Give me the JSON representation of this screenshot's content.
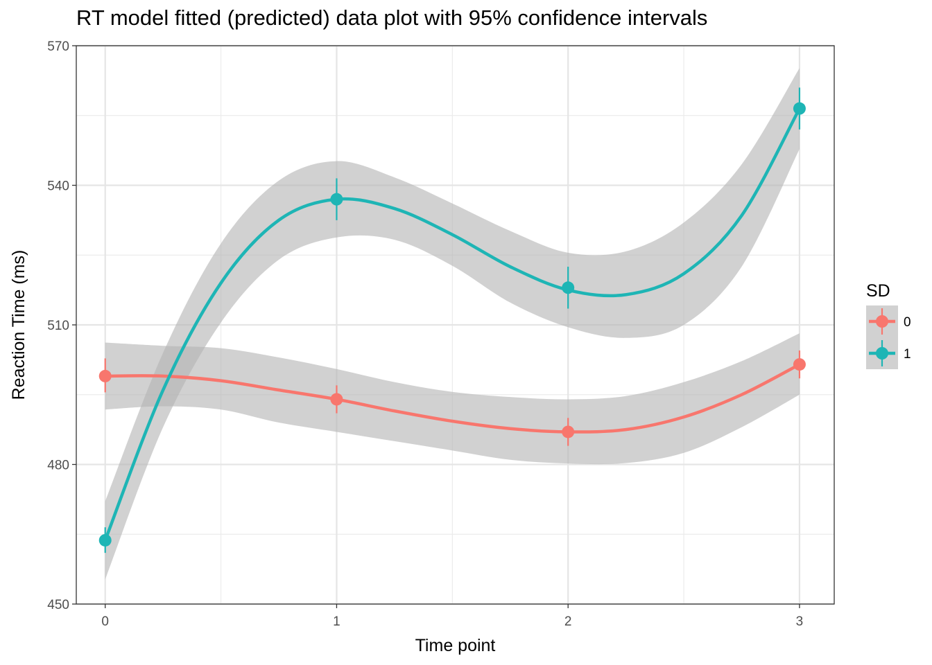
{
  "title": "RT model fitted (predicted) data plot with 95% confidence intervals",
  "colors": {
    "sd0": "#F8766D",
    "sd1": "#1EB5B5",
    "ribbon": "#B3B3B3"
  },
  "chart_data": {
    "type": "line",
    "title": "RT model fitted (predicted) data plot with 95% confidence intervals",
    "xlabel": "Time point",
    "ylabel": "Reaction Time (ms)",
    "x_ticks": [
      0,
      1,
      2,
      3
    ],
    "y_ticks": [
      450,
      480,
      510,
      540,
      570
    ],
    "xlim": [
      -0.125,
      3.15
    ],
    "ylim": [
      450,
      570
    ],
    "grid": true,
    "legend": {
      "title": "SD",
      "position": "right",
      "entries": [
        "0",
        "1"
      ]
    },
    "series": [
      {
        "name": "0",
        "x": [
          0,
          1,
          2,
          3
        ],
        "y": [
          499,
          494,
          487,
          501.5
        ],
        "err_low": [
          495.5,
          491,
          484,
          498.5
        ],
        "err_high": [
          502.8,
          497,
          490,
          504.5
        ],
        "fit_x": [
          0,
          0.25,
          0.5,
          0.75,
          1,
          1.25,
          1.5,
          1.75,
          2,
          2.25,
          2.5,
          2.75,
          3
        ],
        "fit_y": [
          499,
          499,
          498,
          496,
          494,
          491.5,
          489.3,
          487.7,
          487,
          487.5,
          490.2,
          495,
          501.5
        ],
        "ci_low": [
          491.8,
          492.5,
          491.8,
          489,
          487,
          485,
          483,
          481,
          480.2,
          480.3,
          482.5,
          488,
          495
        ],
        "ci_high": [
          506.2,
          505.5,
          505,
          503,
          500.5,
          497.7,
          495.6,
          494.5,
          494,
          494.7,
          497.7,
          502.2,
          508.2
        ]
      },
      {
        "name": "1",
        "x": [
          0,
          1,
          2,
          3
        ],
        "y": [
          463.7,
          537,
          518,
          556.5
        ],
        "err_low": [
          461,
          532.5,
          513.5,
          552
        ],
        "err_high": [
          466.5,
          541.5,
          522.5,
          561
        ],
        "fit_x": [
          0,
          0.25,
          0.5,
          0.75,
          1,
          1.25,
          1.5,
          1.75,
          2,
          2.25,
          2.5,
          2.75,
          3
        ],
        "fit_y": [
          463.7,
          496,
          519,
          532.5,
          537,
          535,
          529.4,
          522.5,
          517.5,
          516.5,
          521,
          533.5,
          556.5
        ],
        "ci_low": [
          455.3,
          488,
          510.5,
          524,
          528.8,
          528.3,
          522.7,
          514.8,
          509.5,
          507.2,
          510,
          522.5,
          547.8
        ],
        "ci_high": [
          472.1,
          504,
          527.5,
          541,
          545.2,
          541.7,
          536.1,
          530.2,
          525.5,
          525.8,
          532,
          544.5,
          565.2
        ]
      }
    ]
  }
}
